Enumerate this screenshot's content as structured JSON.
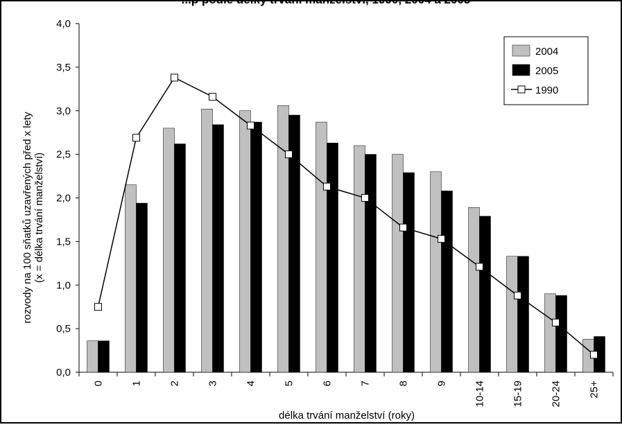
{
  "chart_data": {
    "type": "bar",
    "title": "...p podle délky trvání manželství, 1990, 2004 a 2005",
    "xlabel": "délka trvání manželství (roky)",
    "ylabel_line1": "rozvody na 100 sňatků uzavřených před x lety",
    "ylabel_line2": "(x = délka trvání manželství)",
    "categories": [
      "0",
      "1",
      "2",
      "3",
      "4",
      "5",
      "6",
      "7",
      "8",
      "9",
      "10-14",
      "15-19",
      "20-24",
      "25+"
    ],
    "ylim": [
      0,
      4.0
    ],
    "yticks": [
      "0,0",
      "0,5",
      "1,0",
      "1,5",
      "2,0",
      "2,5",
      "3,0",
      "3,5",
      "4,0"
    ],
    "grid": false,
    "legend_position": "top-right",
    "series": [
      {
        "name": "2004",
        "kind": "bar",
        "color": "#c0c0c0",
        "values": [
          0.36,
          2.15,
          2.8,
          3.02,
          3.0,
          3.06,
          2.87,
          2.6,
          2.5,
          2.3,
          1.89,
          1.33,
          0.9,
          0.38
        ]
      },
      {
        "name": "2005",
        "kind": "bar",
        "color": "#000000",
        "values": [
          0.36,
          1.94,
          2.62,
          2.84,
          2.87,
          2.95,
          2.63,
          2.5,
          2.29,
          2.08,
          1.79,
          1.33,
          0.88,
          0.41
        ]
      },
      {
        "name": "1990",
        "kind": "line",
        "color": "#000000",
        "marker": "square-open",
        "values": [
          0.75,
          2.69,
          3.38,
          3.16,
          2.83,
          2.5,
          2.13,
          2.0,
          1.66,
          1.53,
          1.21,
          0.88,
          0.57,
          0.2
        ]
      }
    ]
  }
}
